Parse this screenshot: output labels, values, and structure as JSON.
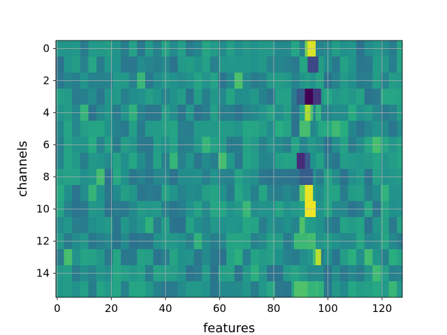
{
  "chart_data": {
    "type": "heatmap",
    "xlabel": "features",
    "ylabel": "channels",
    "n_cols": 128,
    "n_rows": 16,
    "xlim": [
      -0.5,
      127.5
    ],
    "ylim": [
      15.5,
      -0.5
    ],
    "xticks": [
      0,
      20,
      40,
      60,
      80,
      100,
      120
    ],
    "yticks": [
      0,
      2,
      4,
      6,
      8,
      10,
      12,
      14
    ],
    "grid": true,
    "colormap": "viridis",
    "colors": {
      "low": "#440154",
      "mid": "#21918c",
      "high": "#fde725"
    },
    "values": [],
    "highlights": [
      {
        "row": 0,
        "cols": [
          93,
          94,
          95
        ],
        "value": 0.95
      },
      {
        "row": 0,
        "cols": [
          92
        ],
        "value": 0.8
      },
      {
        "row": 1,
        "cols": [
          93,
          94,
          95,
          96
        ],
        "value": 0.22
      },
      {
        "row": 2,
        "cols": [
          92,
          93
        ],
        "value": 0.55
      },
      {
        "row": 3,
        "cols": [
          92,
          93,
          94
        ],
        "value": 0.0
      },
      {
        "row": 3,
        "cols": [
          95,
          96,
          97
        ],
        "value": 0.18
      },
      {
        "row": 3,
        "cols": [
          89,
          90,
          91
        ],
        "value": 0.28
      },
      {
        "row": 4,
        "cols": [
          92,
          93
        ],
        "value": 0.88
      },
      {
        "row": 4,
        "cols": [
          94
        ],
        "value": 0.72
      },
      {
        "row": 4,
        "cols": [
          96,
          97
        ],
        "value": 0.65
      },
      {
        "row": 5,
        "cols": [
          90,
          91,
          92,
          93
        ],
        "value": 0.7
      },
      {
        "row": 5,
        "cols": [
          97,
          98
        ],
        "value": 0.6
      },
      {
        "row": 7,
        "cols": [
          89,
          90,
          91
        ],
        "value": 0.15
      },
      {
        "row": 7,
        "cols": [
          92,
          93
        ],
        "value": 0.28
      },
      {
        "row": 8,
        "cols": [
          90,
          91,
          92,
          93,
          94
        ],
        "value": 0.3
      },
      {
        "row": 9,
        "cols": [
          92,
          93,
          94
        ],
        "value": 0.97
      },
      {
        "row": 9,
        "cols": [
          90,
          91
        ],
        "value": 0.75
      },
      {
        "row": 10,
        "cols": [
          92,
          93,
          94,
          95
        ],
        "value": 0.98
      },
      {
        "row": 11,
        "cols": [
          90,
          91
        ],
        "value": 0.72
      },
      {
        "row": 12,
        "cols": [
          88,
          89,
          90,
          91,
          92
        ],
        "value": 0.68
      },
      {
        "row": 13,
        "cols": [
          96,
          97
        ],
        "value": 0.9
      },
      {
        "row": 13,
        "cols": [
          95
        ],
        "value": 0.7
      },
      {
        "row": 15,
        "cols": [
          88,
          89,
          90,
          91,
          92
        ],
        "value": 0.72
      },
      {
        "row": 15,
        "cols": [
          97,
          98
        ],
        "value": 0.65
      }
    ]
  }
}
